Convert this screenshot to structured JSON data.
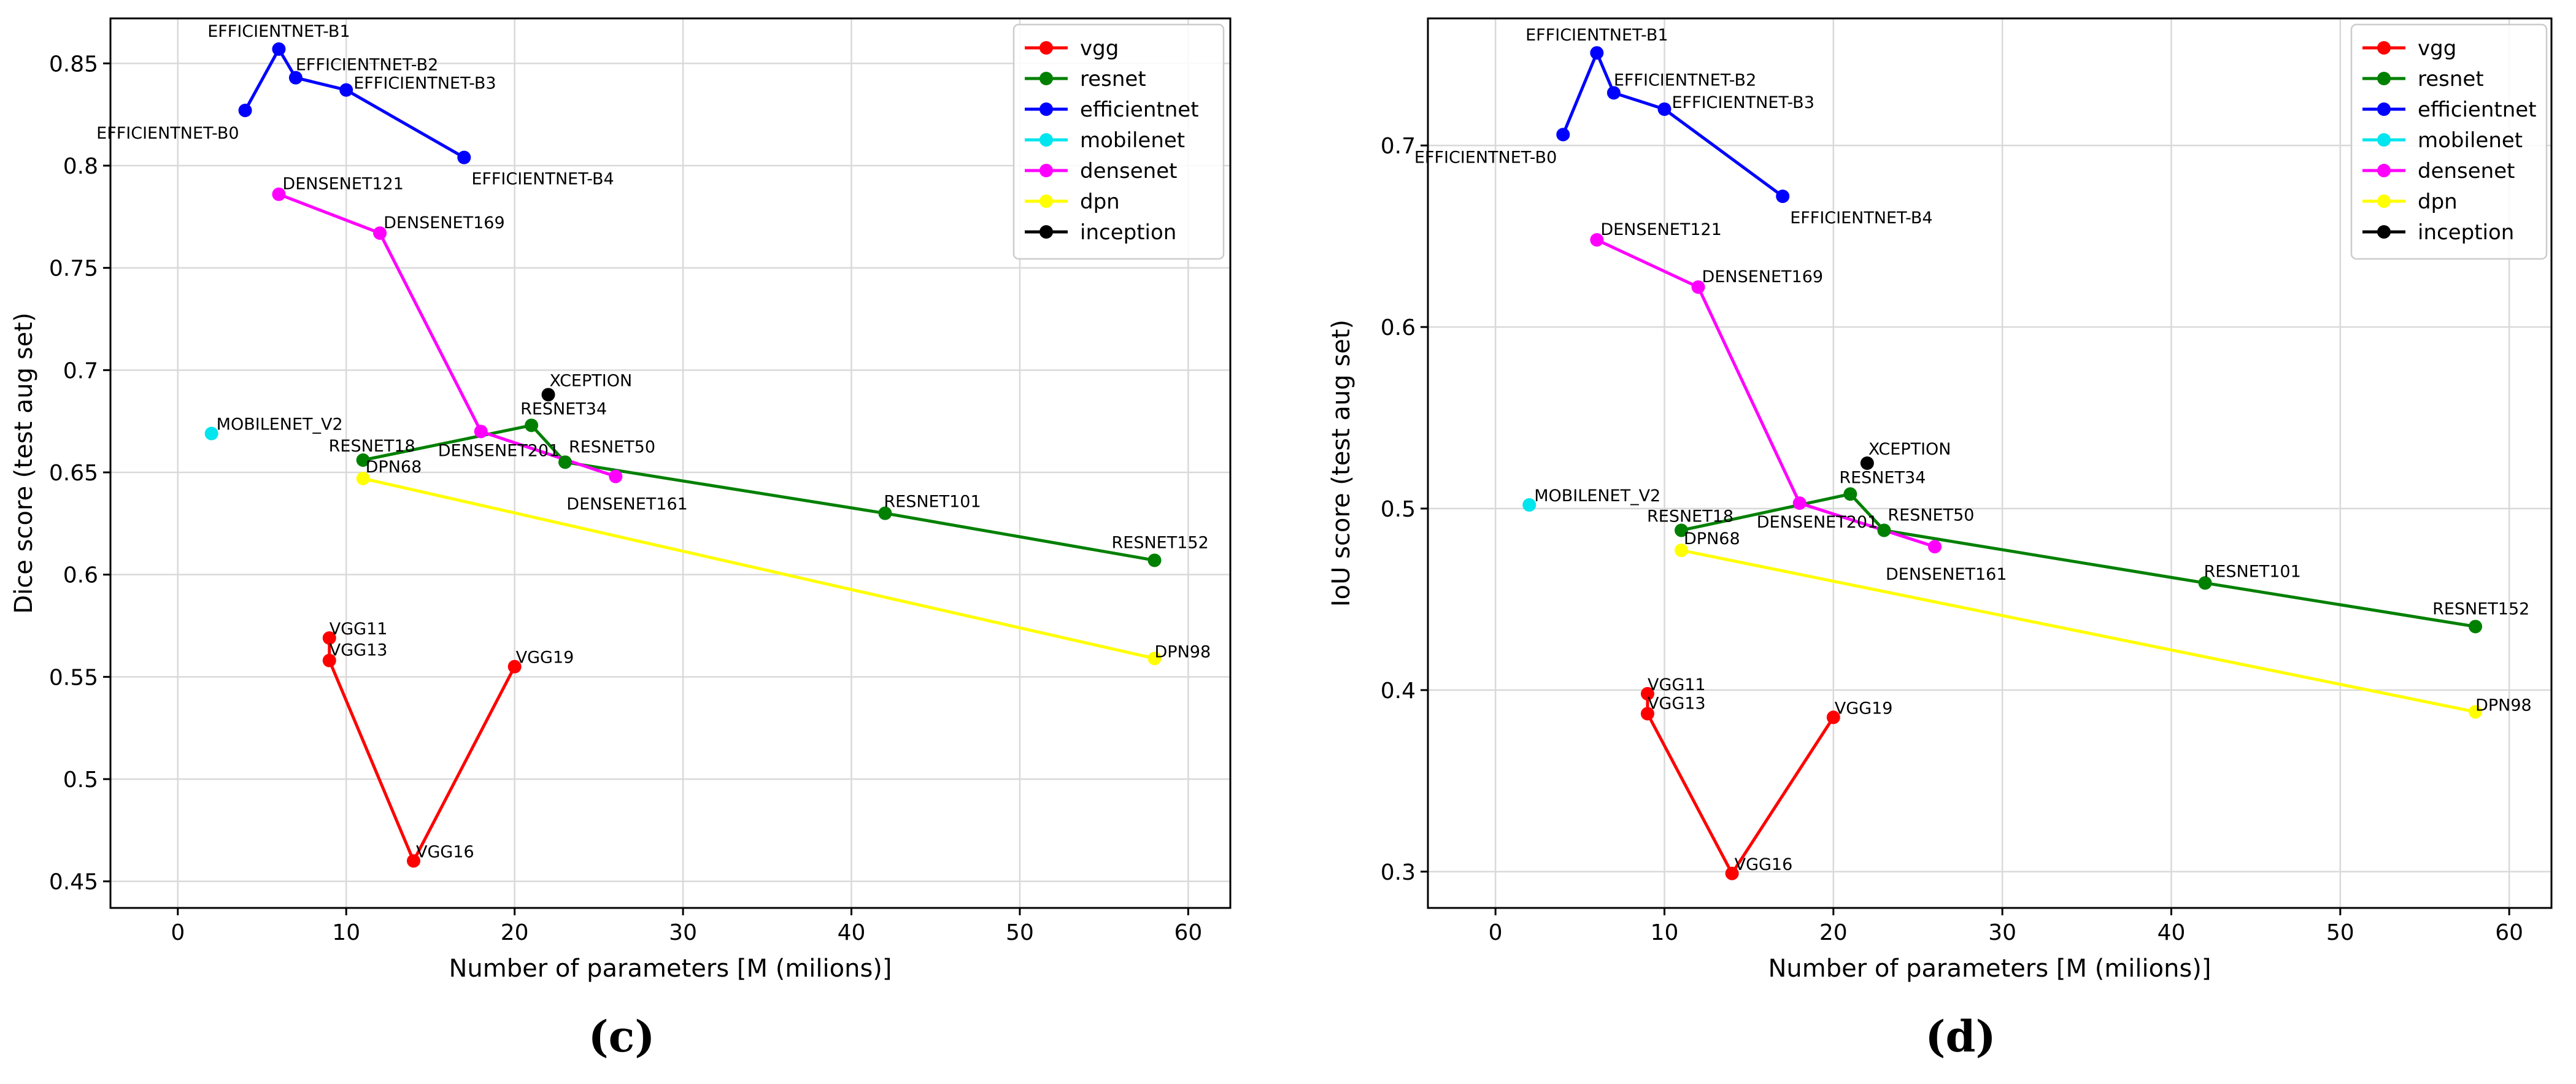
{
  "figure": {
    "captions": [
      "(c)",
      "(d)"
    ]
  },
  "chart_data": [
    {
      "type": "line",
      "panel": "c",
      "title": "",
      "xlabel": "Number of parameters [M (milions)]",
      "ylabel": "Dice score (test aug set)",
      "xlim": [
        -4,
        62.5
      ],
      "ylim": [
        0.437,
        0.872
      ],
      "xticks": [
        0,
        10,
        20,
        30,
        40,
        50,
        60
      ],
      "yticks": [
        0.45,
        0.5,
        0.55,
        0.6,
        0.65,
        0.7,
        0.75,
        0.8,
        0.85
      ],
      "grid": true,
      "legend_position": "top-right",
      "series": [
        {
          "name": "vgg",
          "color": "#ff0000",
          "points": [
            {
              "label": "VGG11",
              "x": 9,
              "y": 0.569
            },
            {
              "label": "VGG13",
              "x": 9,
              "y": 0.558
            },
            {
              "label": "VGG16",
              "x": 14,
              "y": 0.46
            },
            {
              "label": "VGG19",
              "x": 20,
              "y": 0.555
            }
          ]
        },
        {
          "name": "resnet",
          "color": "#008000",
          "points": [
            {
              "label": "RESNET18",
              "x": 11,
              "y": 0.656
            },
            {
              "label": "RESNET34",
              "x": 21,
              "y": 0.673
            },
            {
              "label": "RESNET50",
              "x": 23,
              "y": 0.655
            },
            {
              "label": "RESNET101",
              "x": 42,
              "y": 0.63
            },
            {
              "label": "RESNET152",
              "x": 58,
              "y": 0.607
            }
          ]
        },
        {
          "name": "efficientnet",
          "color": "#0000ff",
          "points": [
            {
              "label": "EFFICIENTNET-B0",
              "x": 4,
              "y": 0.827
            },
            {
              "label": "EFFICIENTNET-B1",
              "x": 6,
              "y": 0.857
            },
            {
              "label": "EFFICIENTNET-B2",
              "x": 7,
              "y": 0.843
            },
            {
              "label": "EFFICIENTNET-B3",
              "x": 10,
              "y": 0.837
            },
            {
              "label": "EFFICIENTNET-B4",
              "x": 17,
              "y": 0.804
            }
          ]
        },
        {
          "name": "mobilenet",
          "color": "#00e5ee",
          "points": [
            {
              "label": "MOBILENET_V2",
              "x": 2,
              "y": 0.669
            }
          ]
        },
        {
          "name": "densenet",
          "color": "#ff00ff",
          "points": [
            {
              "label": "DENSENET121",
              "x": 6,
              "y": 0.786
            },
            {
              "label": "DENSENET169",
              "x": 12,
              "y": 0.767
            },
            {
              "label": "DENSENET201",
              "x": 18,
              "y": 0.67
            },
            {
              "label": "DENSENET161",
              "x": 26,
              "y": 0.648
            }
          ]
        },
        {
          "name": "dpn",
          "color": "#ffff00",
          "points": [
            {
              "label": "DPN68",
              "x": 11,
              "y": 0.647
            },
            {
              "label": "DPN98",
              "x": 58,
              "y": 0.559
            }
          ]
        },
        {
          "name": "inception",
          "color": "#000000",
          "points": [
            {
              "label": "XCEPTION",
              "x": 22,
              "y": 0.688
            }
          ]
        }
      ]
    },
    {
      "type": "line",
      "panel": "d",
      "title": "",
      "xlabel": "Number of parameters [M (milions)]",
      "ylabel": "IoU score (test aug set)",
      "xlim": [
        -4,
        62.5
      ],
      "ylim": [
        0.28,
        0.77
      ],
      "xticks": [
        0,
        10,
        20,
        30,
        40,
        50,
        60
      ],
      "yticks": [
        0.3,
        0.4,
        0.5,
        0.6,
        0.7
      ],
      "grid": true,
      "legend_position": "top-right",
      "series": [
        {
          "name": "vgg",
          "color": "#ff0000",
          "points": [
            {
              "label": "VGG11",
              "x": 9,
              "y": 0.398
            },
            {
              "label": "VGG13",
              "x": 9,
              "y": 0.387
            },
            {
              "label": "VGG16",
              "x": 14,
              "y": 0.299
            },
            {
              "label": "VGG19",
              "x": 20,
              "y": 0.385
            }
          ]
        },
        {
          "name": "resnet",
          "color": "#008000",
          "points": [
            {
              "label": "RESNET18",
              "x": 11,
              "y": 0.488
            },
            {
              "label": "RESNET34",
              "x": 21,
              "y": 0.508
            },
            {
              "label": "RESNET50",
              "x": 23,
              "y": 0.488
            },
            {
              "label": "RESNET101",
              "x": 42,
              "y": 0.459
            },
            {
              "label": "RESNET152",
              "x": 58,
              "y": 0.435
            }
          ]
        },
        {
          "name": "efficientnet",
          "color": "#0000ff",
          "points": [
            {
              "label": "EFFICIENTNET-B0",
              "x": 4,
              "y": 0.706
            },
            {
              "label": "EFFICIENTNET-B1",
              "x": 6,
              "y": 0.751
            },
            {
              "label": "EFFICIENTNET-B2",
              "x": 7,
              "y": 0.729
            },
            {
              "label": "EFFICIENTNET-B3",
              "x": 10,
              "y": 0.72
            },
            {
              "label": "EFFICIENTNET-B4",
              "x": 17,
              "y": 0.672
            }
          ]
        },
        {
          "name": "mobilenet",
          "color": "#00e5ee",
          "points": [
            {
              "label": "MOBILENET_V2",
              "x": 2,
              "y": 0.502
            }
          ]
        },
        {
          "name": "densenet",
          "color": "#ff00ff",
          "points": [
            {
              "label": "DENSENET121",
              "x": 6,
              "y": 0.648
            },
            {
              "label": "DENSENET169",
              "x": 12,
              "y": 0.622
            },
            {
              "label": "DENSENET201",
              "x": 18,
              "y": 0.503
            },
            {
              "label": "DENSENET161",
              "x": 26,
              "y": 0.479
            }
          ]
        },
        {
          "name": "dpn",
          "color": "#ffff00",
          "points": [
            {
              "label": "DPN68",
              "x": 11,
              "y": 0.477
            },
            {
              "label": "DPN98",
              "x": 58,
              "y": 0.388
            }
          ]
        },
        {
          "name": "inception",
          "color": "#000000",
          "points": [
            {
              "label": "XCEPTION",
              "x": 22,
              "y": 0.525
            }
          ]
        }
      ]
    }
  ]
}
